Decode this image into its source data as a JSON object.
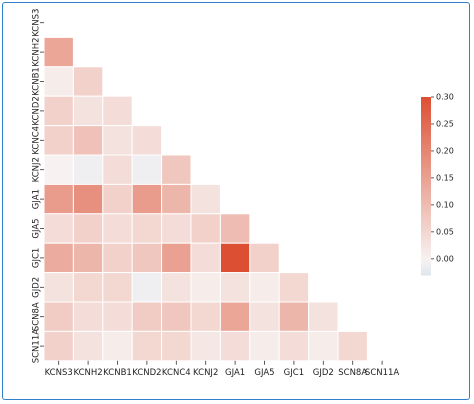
{
  "chart_data": {
    "type": "heatmap",
    "mask": "upper-triangle",
    "labels": [
      "KCNS3",
      "KCNH2",
      "KCNB1",
      "KCND2",
      "KCNC4",
      "KCNJ2",
      "GJA1",
      "GJA5",
      "GJC1",
      "GJD2",
      "SCN8A",
      "SCN11A"
    ],
    "matrix": [
      [
        null,
        null,
        null,
        null,
        null,
        null,
        null,
        null,
        null,
        null,
        null,
        null
      ],
      [
        0.14,
        null,
        null,
        null,
        null,
        null,
        null,
        null,
        null,
        null,
        null,
        null
      ],
      [
        0.01,
        0.06,
        null,
        null,
        null,
        null,
        null,
        null,
        null,
        null,
        null,
        null
      ],
      [
        0.06,
        0.03,
        0.04,
        null,
        null,
        null,
        null,
        null,
        null,
        null,
        null,
        null
      ],
      [
        0.06,
        0.09,
        0.03,
        0.04,
        null,
        null,
        null,
        null,
        null,
        null,
        null,
        null
      ],
      [
        0.0,
        -0.01,
        0.04,
        -0.01,
        0.08,
        null,
        null,
        null,
        null,
        null,
        null,
        null
      ],
      [
        0.16,
        0.18,
        0.06,
        0.16,
        0.11,
        0.03,
        null,
        null,
        null,
        null,
        null,
        null
      ],
      [
        0.04,
        0.06,
        0.04,
        0.05,
        0.04,
        0.06,
        0.1,
        null,
        null,
        null,
        null,
        null
      ],
      [
        0.13,
        0.11,
        0.06,
        0.08,
        0.15,
        0.04,
        0.3,
        0.06,
        null,
        null,
        null,
        null
      ],
      [
        0.03,
        0.05,
        0.05,
        -0.01,
        0.03,
        0.01,
        0.03,
        0.01,
        0.05,
        null,
        null,
        null
      ],
      [
        0.07,
        0.04,
        0.04,
        0.07,
        0.08,
        0.05,
        0.14,
        0.03,
        0.11,
        0.03,
        null,
        null
      ],
      [
        0.06,
        0.03,
        0.01,
        0.05,
        0.05,
        0.02,
        0.04,
        0.01,
        0.04,
        0.01,
        0.05,
        null
      ]
    ],
    "colorbar": {
      "min": -0.03,
      "max": 0.3,
      "ticks": [
        "0.00",
        "0.05",
        "0.10",
        "0.15",
        "0.20",
        "0.25",
        "0.30"
      ]
    },
    "colors": {
      "low": "#dfe7ee",
      "mid": "#f7f2f1",
      "high": "#dd4f33"
    }
  }
}
